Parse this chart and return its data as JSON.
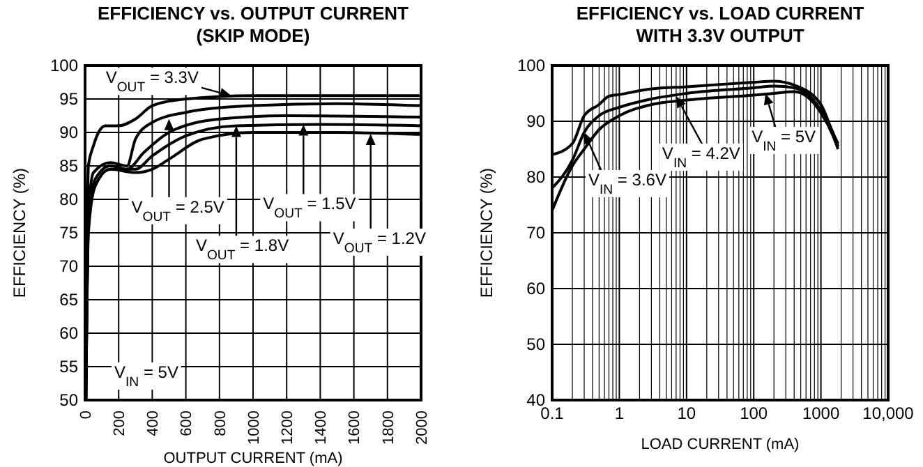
{
  "chart_data": [
    {
      "type": "line",
      "title": "EFFICIENCY vs. OUTPUT CURRENT\n(SKIP MODE)",
      "xlabel": "OUTPUT CURRENT (mA)",
      "ylabel": "EFFICIENCY (%)",
      "xlim": [
        0,
        2000
      ],
      "ylim": [
        50,
        100
      ],
      "xticks": [
        0,
        200,
        400,
        600,
        800,
        1000,
        1200,
        1400,
        1600,
        1800,
        2000
      ],
      "yticks": [
        50,
        55,
        60,
        65,
        70,
        75,
        80,
        85,
        90,
        95,
        100
      ],
      "grid": true,
      "marker": "none",
      "line_style": "solid",
      "annotations": [
        "V$_{IN}$ = 5V",
        {
          "text": "V$_{OUT}$ = 3.3V",
          "x": 870,
          "y": 95.5
        },
        {
          "text": "V$_{OUT}$ = 2.5V",
          "x": 500,
          "y": 92
        },
        {
          "text": "V$_{OUT}$ = 1.8V",
          "x": 900,
          "y": 91
        },
        {
          "text": "V$_{OUT}$ = 1.5V",
          "x": 1300,
          "y": 91.2
        },
        {
          "text": "V$_{OUT}$ = 1.2V",
          "x": 1700,
          "y": 89.8
        }
      ],
      "series": [
        {
          "color": "#000000",
          "x": [
            5,
            20,
            50,
            80,
            120,
            200,
            300,
            400,
            600,
            1000,
            2000
          ],
          "values": [
            50,
            85,
            88,
            90,
            91,
            91,
            92,
            94,
            95,
            95.5,
            95.5
          ]
        },
        {
          "color": "#000000",
          "x": [
            5,
            20,
            50,
            150,
            250,
            300,
            400,
            600,
            1000,
            1500,
            2000
          ],
          "values": [
            50,
            78,
            84,
            85.5,
            85,
            89,
            91.5,
            93,
            94,
            94.3,
            94
          ]
        },
        {
          "color": "#000000",
          "x": [
            5,
            20,
            60,
            150,
            250,
            350,
            500,
            800,
            1200,
            2000
          ],
          "values": [
            50,
            77,
            83,
            85,
            84.5,
            87,
            90,
            92,
            92.5,
            92.3
          ]
        },
        {
          "color": "#000000",
          "x": [
            5,
            20,
            60,
            150,
            300,
            400,
            600,
            900,
            1400,
            2000
          ],
          "values": [
            50,
            76,
            82,
            84.5,
            84.5,
            86.5,
            89.5,
            91,
            91.2,
            91
          ]
        },
        {
          "color": "#000000",
          "x": [
            5,
            20,
            60,
            150,
            300,
            400,
            500,
            700,
            1000,
            1500,
            2000
          ],
          "values": [
            50,
            75,
            82,
            84.5,
            84,
            84.5,
            86,
            89,
            90,
            90,
            89.7
          ]
        }
      ]
    },
    {
      "type": "line",
      "title": "EFFICIENCY vs. LOAD CURRENT\nWITH 3.3V OUTPUT",
      "xlabel": "LOAD CURRENT (mA)",
      "ylabel": "EFFICIENCY (%)",
      "log": "x",
      "xlim": [
        0.1,
        10000
      ],
      "ylim": [
        40,
        100
      ],
      "xticks": [
        0.1,
        1,
        10,
        100,
        1000,
        {
          "value": 10000,
          "label": "10,000"
        }
      ],
      "yticks": [
        40,
        50,
        60,
        70,
        80,
        90,
        100
      ],
      "grid": true,
      "marker": "none",
      "line_style": "solid",
      "annotations": [
        {
          "text": "V$_{IN}$ = 3.6V",
          "x": 0.3,
          "y": 88
        },
        {
          "text": "V$_{IN}$ = 4.2V",
          "x": 7,
          "y": 94.5
        },
        {
          "text": "V$_{IN}$ = 5V",
          "x": 150,
          "y": 95
        }
      ],
      "series": [
        {
          "color": "#000000",
          "x": [
            0.1,
            0.2,
            0.3,
            0.5,
            0.7,
            1,
            3,
            10,
            100,
            200,
            400,
            1000,
            1500,
            1800
          ],
          "values": [
            84,
            86,
            91,
            93,
            94.5,
            94.8,
            95.8,
            96.2,
            97,
            97.2,
            96.5,
            93,
            88,
            86
          ]
        },
        {
          "color": "#000000",
          "x": [
            0.1,
            0.2,
            0.3,
            0.5,
            1,
            3,
            10,
            100,
            200,
            400,
            1000,
            1500,
            1800
          ],
          "values": [
            78,
            83,
            88,
            91,
            92.5,
            94,
            95,
            96,
            96.3,
            96,
            92,
            88,
            85.5
          ]
        },
        {
          "color": "#000000",
          "x": [
            0.1,
            0.2,
            0.3,
            0.5,
            1,
            3,
            10,
            100,
            200,
            400,
            1000,
            1500,
            1800
          ],
          "values": [
            74,
            82,
            85,
            88.5,
            91,
            93,
            93.8,
            94.7,
            95,
            95.3,
            91.5,
            87.5,
            85
          ]
        }
      ]
    }
  ]
}
